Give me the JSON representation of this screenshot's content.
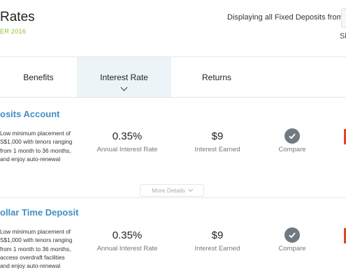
{
  "header": {
    "title": "Rates",
    "subtitle": "ER 2016",
    "display_label": "Displaying all Fixed Deposits from",
    "display_sub": "Sh"
  },
  "tabs": [
    {
      "label": "Benefits",
      "active": false
    },
    {
      "label": "Interest Rate",
      "active": true
    },
    {
      "label": "Returns",
      "active": false
    }
  ],
  "products": [
    {
      "name": "osits Account",
      "description": [
        "Low minimum placement of",
        "S$1,000 with tenors ranging",
        "from 1 month to 36 months,",
        "and enjoy auto-renewal"
      ],
      "rate_value": "0.35%",
      "rate_label": "Annual Interest Rate",
      "earned_value": "$9",
      "earned_label": "Interest Earned",
      "compare_label": "Compare"
    },
    {
      "name": "ollar Time Deposit",
      "description": [
        "Low minimum placement of",
        "S$1,000 with tenors ranging",
        "from 1 month to 36 months,",
        "access overdraft facilities",
        "and enjoy auto-renewal"
      ],
      "rate_value": "0.35%",
      "rate_label": "Annual Interest Rate",
      "earned_value": "$9",
      "earned_label": "Interest Earned",
      "compare_label": "Compare"
    }
  ],
  "more_details_label": "More Details",
  "colors": {
    "accent_blue": "#3f8fc6",
    "accent_green": "#8cbf2f",
    "apply_red": "#e2432a",
    "active_tab_bg": "#edf4f7"
  }
}
